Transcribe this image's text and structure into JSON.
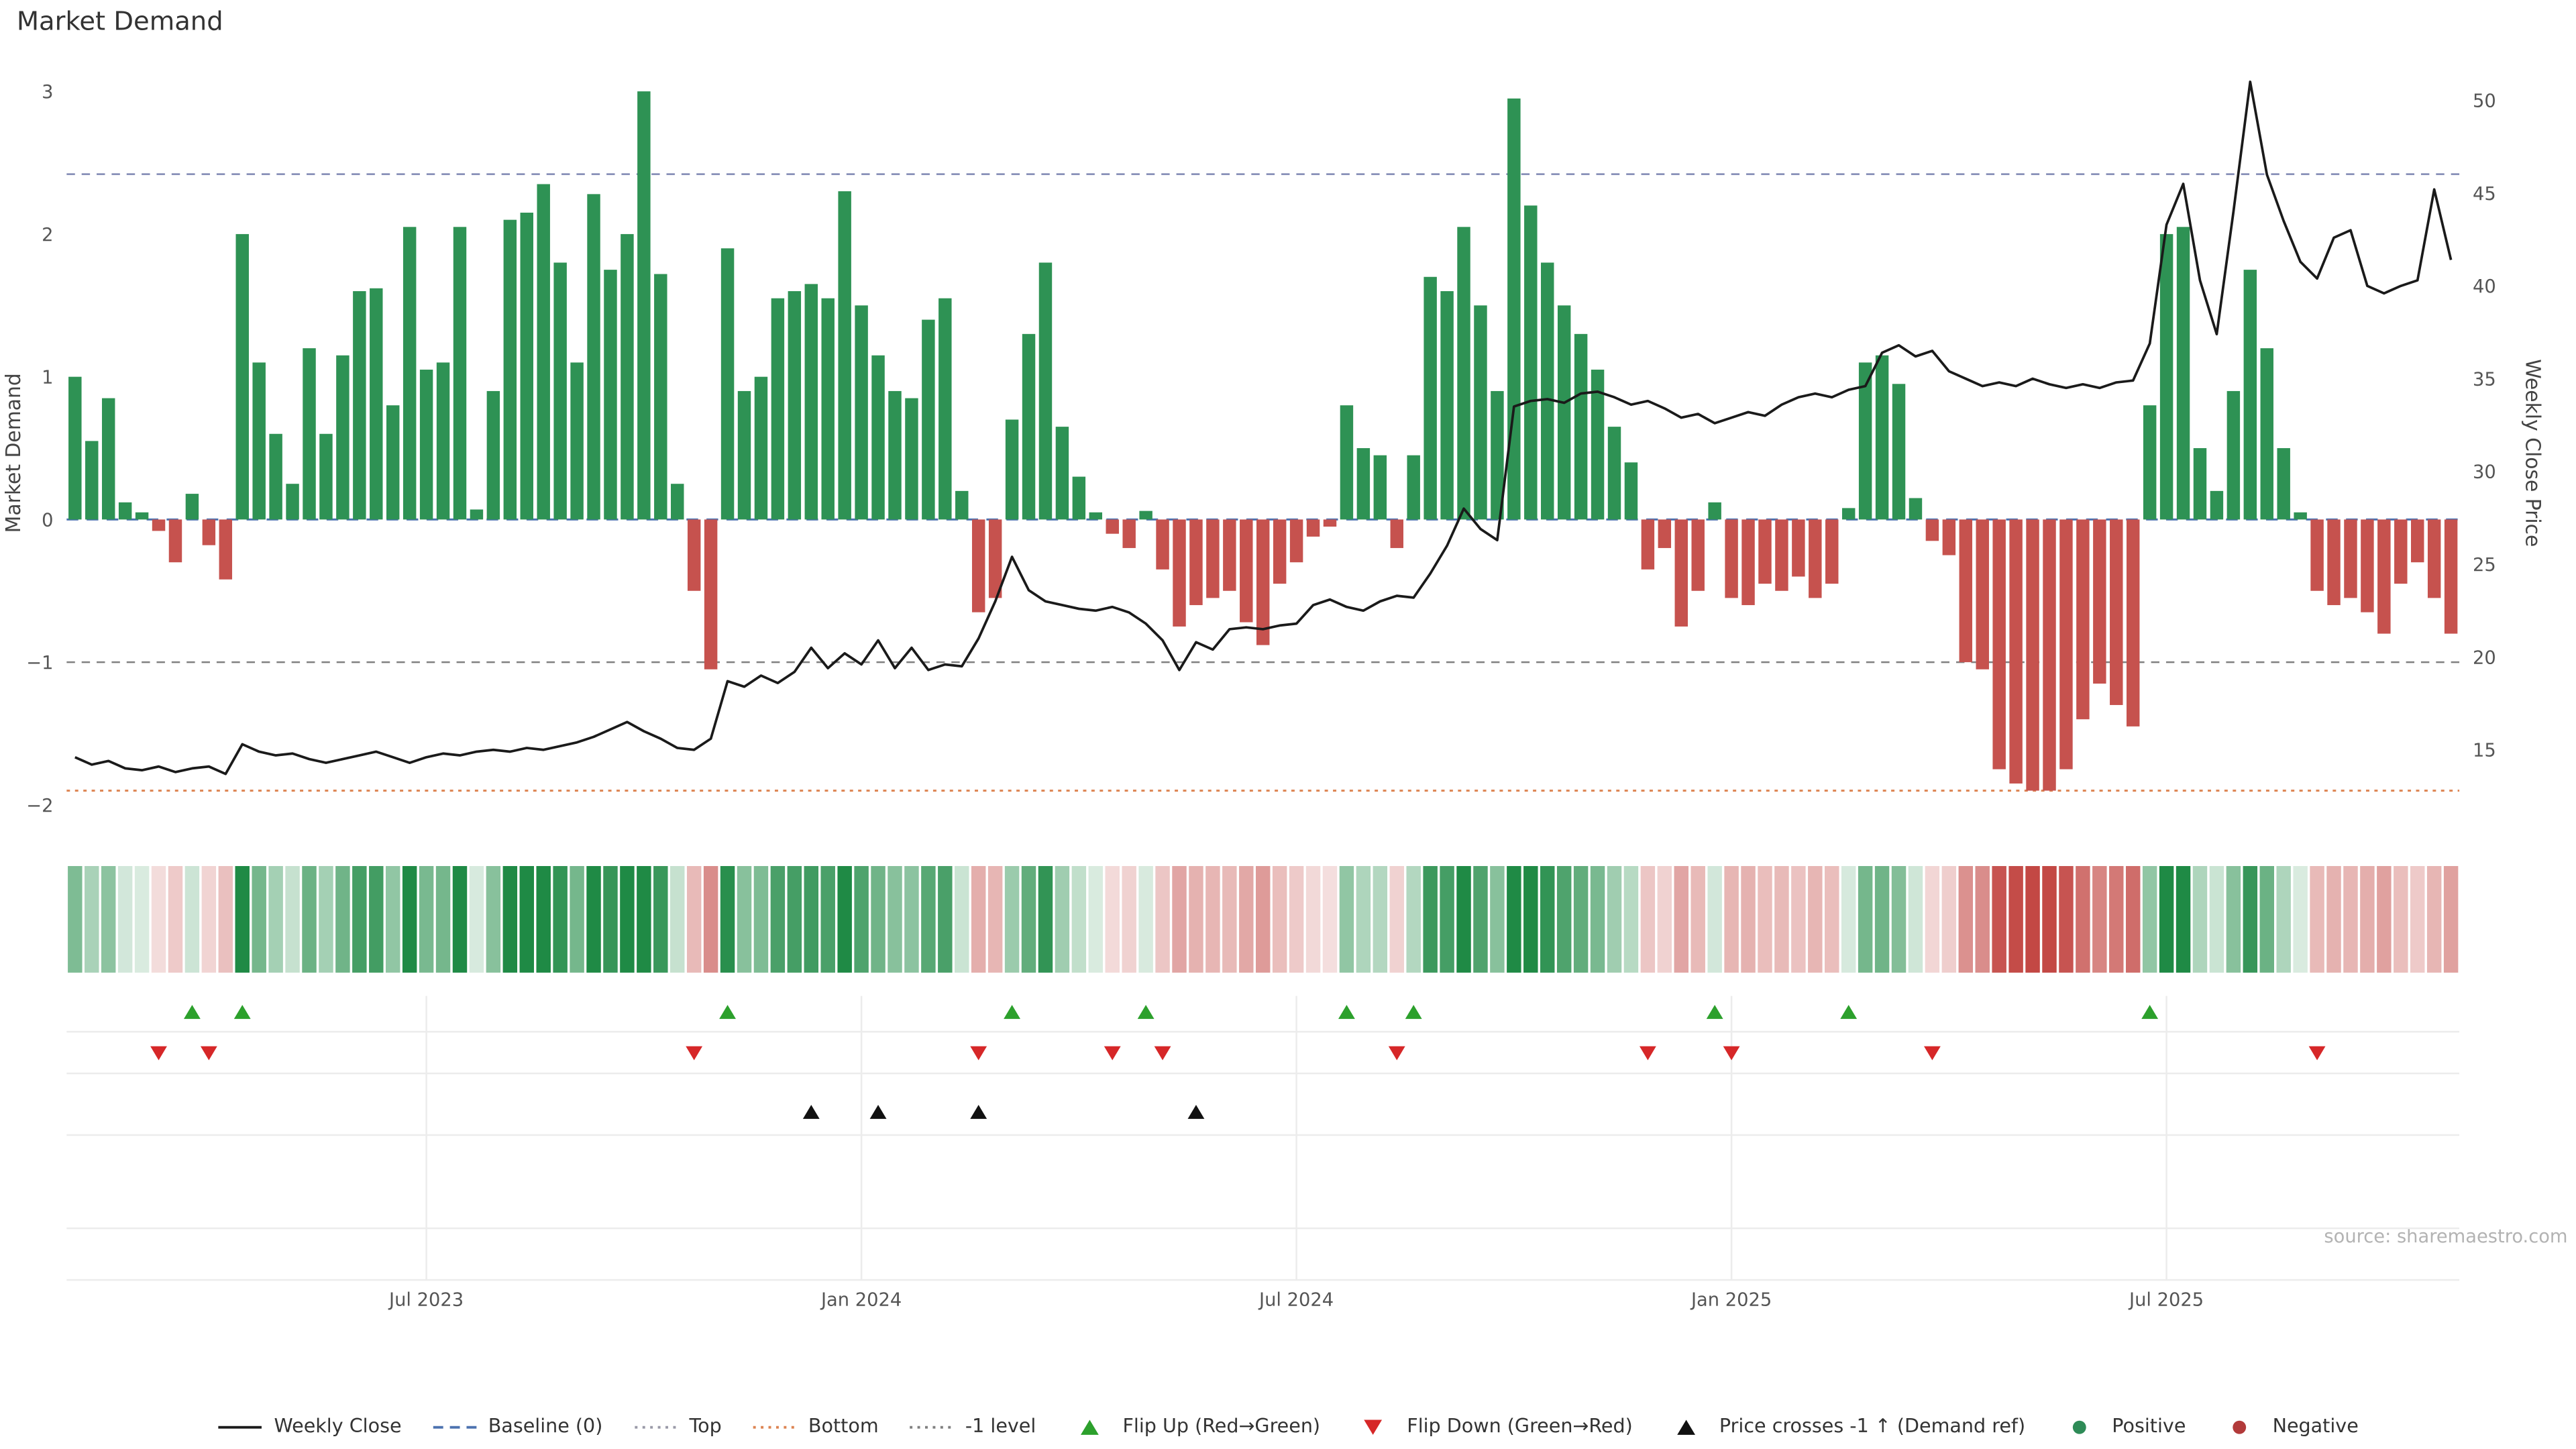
{
  "title": "Market Demand",
  "source": "source: sharemaestro.com",
  "axes": {
    "left_label": "Market Demand",
    "right_label": "Weekly Close Price",
    "left_ticks": [
      {
        "value": 3,
        "label": "3"
      },
      {
        "value": 2,
        "label": "2"
      },
      {
        "value": 1,
        "label": "1"
      },
      {
        "value": 0,
        "label": "0"
      },
      {
        "value": -1,
        "label": "−1"
      },
      {
        "value": -2,
        "label": "−2"
      }
    ],
    "right_ticks": [
      {
        "value": 50,
        "label": "50"
      },
      {
        "value": 45,
        "label": "45"
      },
      {
        "value": 40,
        "label": "40"
      },
      {
        "value": 35,
        "label": "35"
      },
      {
        "value": 30,
        "label": "30"
      },
      {
        "value": 25,
        "label": "25"
      },
      {
        "value": 20,
        "label": "20"
      },
      {
        "value": 15,
        "label": "15"
      }
    ]
  },
  "colors": {
    "bar_positive": "#2e9254",
    "bar_negative": "#c6524e",
    "price_line": "#1a1a1a",
    "baseline": "#4c72b0",
    "top_line": "#8890b8",
    "bottom_line": "#dd8452",
    "minus1_line": "#808080",
    "flip_up": "#2ca02c",
    "flip_down": "#d62728",
    "price_cross": "#111111",
    "heat_positive": "#1f8a45",
    "heat_negative": "#c0403c",
    "grid": "#ececec",
    "tick_text": "#555555"
  },
  "legend": [
    {
      "label": "Weekly Close",
      "glyph": "solid-line",
      "color": "#1a1a1a"
    },
    {
      "label": "Baseline (0)",
      "glyph": "dashed-line",
      "color": "#4c72b0"
    },
    {
      "label": "Top",
      "glyph": "dotted-line",
      "color": "#9a9aa8"
    },
    {
      "label": "Bottom",
      "glyph": "dotted-line",
      "color": "#dd8452"
    },
    {
      "label": "-1 level",
      "glyph": "dotted-line",
      "color": "#808080"
    },
    {
      "label": "Flip Up (Red→Green)",
      "glyph": "triangle-up",
      "color": "#2ca02c"
    },
    {
      "label": "Flip Down (Green→Red)",
      "glyph": "triangle-down",
      "color": "#d62728"
    },
    {
      "label": "Price crosses -1 ↑ (Demand ref)",
      "glyph": "triangle-up",
      "color": "#111111"
    },
    {
      "label": "Positive",
      "glyph": "dot",
      "color": "#2e8b57"
    },
    {
      "label": "Negative",
      "glyph": "dot",
      "color": "#b23a3a"
    }
  ],
  "chart_data": {
    "type": "bar+line",
    "title": "Market Demand",
    "ylabel_left": "Market Demand",
    "ylabel_right": "Weekly Close Price",
    "ylim_left": [
      -2.16,
      3.08
    ],
    "ylim_right": [
      10.8,
      51.1
    ],
    "x_tick_labels": [
      "Jul 2023",
      "Jan 2024",
      "Jul 2024",
      "Jan 2025",
      "Jul 2025"
    ],
    "x_ticks": [
      {
        "index": 21,
        "label": "Jul 2023"
      },
      {
        "index": 47,
        "label": "Jan 2024"
      },
      {
        "index": 73,
        "label": "Jul 2024"
      },
      {
        "index": 99,
        "label": "Jan 2025"
      },
      {
        "index": 125,
        "label": "Jul 2025"
      }
    ],
    "levels": {
      "baseline": 0,
      "top": 2.42,
      "bottom": -1.9,
      "minus1": -1
    },
    "series": [
      {
        "name": "Market Demand",
        "type": "bar",
        "axis": "left",
        "values": [
          1.0,
          0.55,
          0.85,
          0.12,
          0.05,
          -0.08,
          -0.3,
          0.18,
          -0.18,
          -0.42,
          2.0,
          1.1,
          0.6,
          0.25,
          1.2,
          0.6,
          1.15,
          1.6,
          1.62,
          0.8,
          2.05,
          1.05,
          1.1,
          2.05,
          0.07,
          0.9,
          2.1,
          2.15,
          2.35,
          1.8,
          1.1,
          2.28,
          1.75,
          2.0,
          3.0,
          1.72,
          0.25,
          -0.5,
          -1.05,
          1.9,
          0.9,
          1.0,
          1.55,
          1.6,
          1.65,
          1.55,
          2.3,
          1.5,
          1.15,
          0.9,
          0.85,
          1.4,
          1.55,
          0.2,
          -0.65,
          -0.55,
          0.7,
          1.3,
          1.8,
          0.65,
          0.3,
          0.05,
          -0.1,
          -0.2,
          0.06,
          -0.35,
          -0.75,
          -0.6,
          -0.55,
          -0.5,
          -0.72,
          -0.88,
          -0.45,
          -0.3,
          -0.12,
          -0.05,
          0.8,
          0.5,
          0.45,
          -0.2,
          0.45,
          1.7,
          1.6,
          2.05,
          1.5,
          0.9,
          2.95,
          2.2,
          1.8,
          1.5,
          1.3,
          1.05,
          0.65,
          0.4,
          -0.35,
          -0.2,
          -0.75,
          -0.5,
          0.12,
          -0.55,
          -0.6,
          -0.45,
          -0.5,
          -0.4,
          -0.55,
          -0.45,
          0.08,
          1.1,
          1.15,
          0.95,
          0.15,
          -0.15,
          -0.25,
          -1.0,
          -1.05,
          -1.75,
          -1.85,
          -1.9,
          -1.9,
          -1.75,
          -1.4,
          -1.15,
          -1.3,
          -1.45,
          0.8,
          2.0,
          2.05,
          0.5,
          0.2,
          0.9,
          1.75,
          1.2,
          0.5,
          0.05,
          -0.5,
          -0.6,
          -0.55,
          -0.65,
          -0.8,
          -0.45,
          -0.3,
          -0.55,
          -0.8
        ]
      },
      {
        "name": "Weekly Close",
        "type": "line",
        "axis": "right",
        "values": [
          14.6,
          14.2,
          14.4,
          14.0,
          13.9,
          14.1,
          13.8,
          14.0,
          14.1,
          13.7,
          15.3,
          14.9,
          14.7,
          14.8,
          14.5,
          14.3,
          14.5,
          14.7,
          14.9,
          14.6,
          14.3,
          14.6,
          14.8,
          14.7,
          14.9,
          15.0,
          14.9,
          15.1,
          15.0,
          15.2,
          15.4,
          15.7,
          16.1,
          16.5,
          16.0,
          15.6,
          15.1,
          15.0,
          15.6,
          18.7,
          18.4,
          19.0,
          18.6,
          19.2,
          20.5,
          19.4,
          20.2,
          19.6,
          20.9,
          19.4,
          20.5,
          19.3,
          19.6,
          19.5,
          21.0,
          23.0,
          25.4,
          23.6,
          23.0,
          22.8,
          22.6,
          22.5,
          22.7,
          22.4,
          21.8,
          20.9,
          19.3,
          20.8,
          20.4,
          21.5,
          21.6,
          21.5,
          21.7,
          21.8,
          22.8,
          23.1,
          22.7,
          22.5,
          23.0,
          23.3,
          23.2,
          24.5,
          26.0,
          28.0,
          26.9,
          26.3,
          33.5,
          33.8,
          33.9,
          33.7,
          34.2,
          34.3,
          34.0,
          33.6,
          33.8,
          33.4,
          32.9,
          33.1,
          32.6,
          32.9,
          33.2,
          33.0,
          33.6,
          34.0,
          34.2,
          34.0,
          34.4,
          34.6,
          36.4,
          36.8,
          36.2,
          36.5,
          35.4,
          35.0,
          34.6,
          34.8,
          34.6,
          35.0,
          34.7,
          34.5,
          34.7,
          34.5,
          34.8,
          34.9,
          36.9,
          43.3,
          45.5,
          40.3,
          37.4,
          44.0,
          51.0,
          46.0,
          43.5,
          41.3,
          40.4,
          42.6,
          43.0,
          40.0,
          39.6,
          40.0,
          40.3,
          45.2,
          41.4
        ]
      }
    ],
    "markers": {
      "flip_up_indices": [
        7,
        10,
        39,
        56,
        64,
        76,
        80,
        98,
        106,
        124
      ],
      "flip_down_indices": [
        5,
        8,
        37,
        54,
        62,
        65,
        79,
        94,
        99,
        111,
        134
      ],
      "price_cross_indices": [
        44,
        48,
        54,
        67
      ]
    },
    "heatmap": "intensity of demand values, green positive / red negative",
    "legend_position": "bottom center",
    "grid": "off in main panel, faint grid in marker panel"
  }
}
